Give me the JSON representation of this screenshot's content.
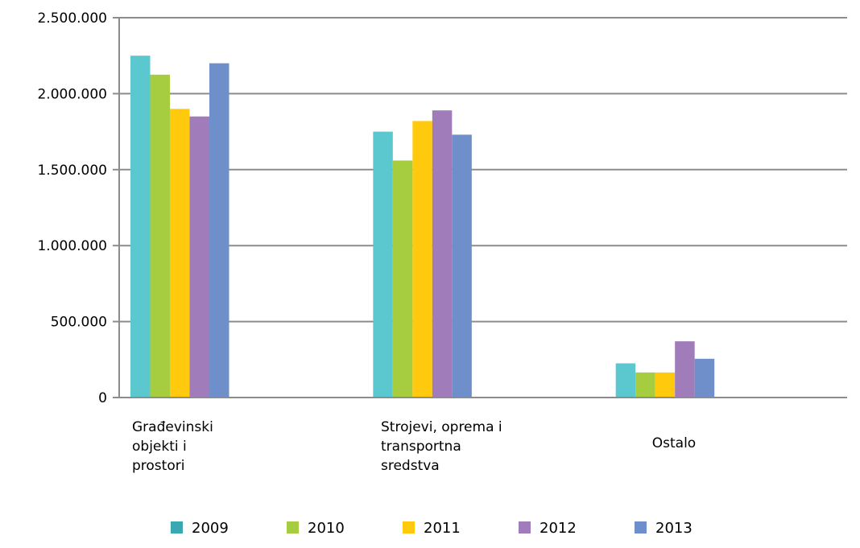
{
  "chart_data": {
    "type": "bar",
    "categories": [
      [
        "Građevinski",
        "objekti i",
        "prostori"
      ],
      [
        "Strojevi, oprema i",
        "transportna",
        "sredstva"
      ],
      [
        "Ostalo"
      ]
    ],
    "series": [
      {
        "name": "2009",
        "color": "#5bc8d0",
        "legend_color": "#3aa8b1",
        "values": [
          2250000,
          1750000,
          225000
        ]
      },
      {
        "name": "2010",
        "color": "#a6cc3f",
        "legend_color": "#a6cc3f",
        "values": [
          2125000,
          1560000,
          165000
        ]
      },
      {
        "name": "2011",
        "color": "#ffc90e",
        "legend_color": "#ffc90e",
        "values": [
          1900000,
          1820000,
          165000
        ]
      },
      {
        "name": "2012",
        "color": "#a07cba",
        "legend_color": "#a07cba",
        "values": [
          1850000,
          1890000,
          370000
        ]
      },
      {
        "name": "2013",
        "color": "#6e8fca",
        "legend_color": "#6e8fca",
        "values": [
          2200000,
          1730000,
          255000
        ]
      }
    ],
    "ylim": [
      0,
      2500000
    ],
    "yticks": [
      0,
      500000,
      1000000,
      1500000,
      2000000,
      2500000
    ],
    "ytick_labels": [
      "0",
      "500.000",
      "1.000.000",
      "1.500.000",
      "2.000.000",
      "2.500.000"
    ],
    "title": "",
    "xlabel": "",
    "ylabel": "",
    "grid": true,
    "legend_position": "bottom"
  }
}
